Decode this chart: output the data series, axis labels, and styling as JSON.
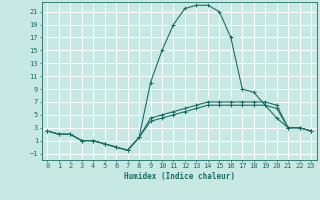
{
  "title": "",
  "xlabel": "Humidex (Indice chaleur)",
  "ylabel": "",
  "bg_color": "#c8e8e4",
  "grid_color": "#ffffff",
  "line_color": "#1a6e64",
  "xlim": [
    -0.5,
    23.5
  ],
  "ylim": [
    -2,
    22.5
  ],
  "xticks": [
    0,
    1,
    2,
    3,
    4,
    5,
    6,
    7,
    8,
    9,
    10,
    11,
    12,
    13,
    14,
    15,
    16,
    17,
    18,
    19,
    20,
    21,
    22,
    23
  ],
  "yticks": [
    -1,
    1,
    3,
    5,
    7,
    9,
    11,
    13,
    15,
    17,
    19,
    21
  ],
  "series": [
    {
      "x": [
        0,
        1,
        2,
        3,
        4,
        5,
        6,
        7,
        8,
        9,
        10,
        11,
        12,
        13,
        14,
        15,
        16,
        17,
        18,
        19,
        20,
        21,
        22,
        23
      ],
      "y": [
        2.5,
        2.0,
        2.0,
        1.0,
        1.0,
        0.5,
        0.0,
        -0.5,
        1.5,
        10.0,
        15.0,
        19.0,
        21.5,
        22.0,
        22.0,
        21.0,
        17.0,
        9.0,
        8.5,
        6.5,
        4.5,
        3.0,
        3.0,
        2.5
      ]
    },
    {
      "x": [
        0,
        1,
        2,
        3,
        4,
        5,
        6,
        7,
        8,
        9,
        10,
        11,
        12,
        13,
        14,
        15,
        16,
        17,
        18,
        19,
        20,
        21,
        22,
        23
      ],
      "y": [
        2.5,
        2.0,
        2.0,
        1.0,
        1.0,
        0.5,
        0.0,
        -0.5,
        1.5,
        4.5,
        5.0,
        5.5,
        6.0,
        6.5,
        7.0,
        7.0,
        7.0,
        7.0,
        7.0,
        7.0,
        6.5,
        3.0,
        3.0,
        2.5
      ]
    },
    {
      "x": [
        0,
        1,
        2,
        3,
        4,
        5,
        6,
        7,
        8,
        9,
        10,
        11,
        12,
        13,
        14,
        15,
        16,
        17,
        18,
        19,
        20,
        21,
        22,
        23
      ],
      "y": [
        2.5,
        2.0,
        2.0,
        1.0,
        1.0,
        0.5,
        0.0,
        -0.5,
        1.5,
        4.0,
        4.5,
        5.0,
        5.5,
        6.0,
        6.5,
        6.5,
        6.5,
        6.5,
        6.5,
        6.5,
        6.0,
        3.0,
        3.0,
        2.5
      ]
    }
  ]
}
